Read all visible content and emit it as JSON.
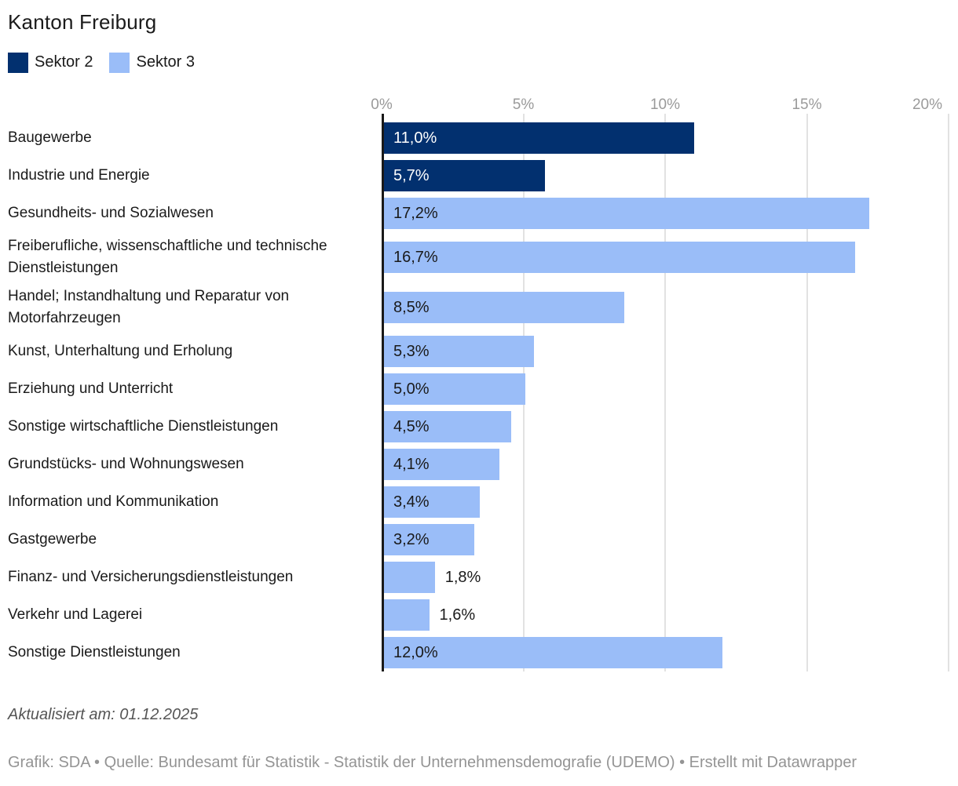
{
  "title": "Kanton Freiburg",
  "legend": {
    "items": [
      {
        "label": "Sektor 2",
        "color": "#02306f"
      },
      {
        "label": "Sektor 3",
        "color": "#9abdf8"
      }
    ]
  },
  "colors": {
    "sektor2": "#02306f",
    "sektor3": "#9abdf8",
    "axis_line": "#191919",
    "gridline": "#e2e2e2",
    "tick_text": "#9a9a9a"
  },
  "chart_data": {
    "type": "bar",
    "orientation": "horizontal",
    "title": "Kanton Freiburg",
    "xlabel": "",
    "ylabel": "",
    "xlim": [
      0,
      20
    ],
    "x_ticks": [
      "0%",
      "5%",
      "10%",
      "15%",
      "20%"
    ],
    "grid": true,
    "legend_position": "top",
    "series_names": [
      "Sektor 2",
      "Sektor 3"
    ],
    "categories": [
      "Baugewerbe",
      "Industrie und Energie",
      "Gesundheits- und Sozialwesen",
      "Freiberufliche, wissenschaftliche und technische Dienstleistungen",
      "Handel; Instandhaltung und Reparatur von Motorfahrzeugen",
      "Kunst, Unterhaltung und Erholung",
      "Erziehung und Unterricht",
      "Sonstige wirtschaftliche Dienstleistungen",
      "Grundstücks- und Wohnungswesen",
      "Information und Kommunikation",
      "Gastgewerbe",
      "Finanz- und Versicherungsdienstleistungen",
      "Verkehr und Lagerei",
      "Sonstige Dienstleistungen"
    ],
    "rows": [
      {
        "category": "Baugewerbe",
        "series_index": 0,
        "series": "Sektor 2",
        "value": 11.0,
        "label": "11,0%",
        "label_placement": "inside"
      },
      {
        "category": "Industrie und Energie",
        "series_index": 0,
        "series": "Sektor 2",
        "value": 5.7,
        "label": "5,7%",
        "label_placement": "inside"
      },
      {
        "category": "Gesundheits- und Sozialwesen",
        "series_index": 1,
        "series": "Sektor 3",
        "value": 17.2,
        "label": "17,2%",
        "label_placement": "inside"
      },
      {
        "category": "Freiberufliche, wissenschaftliche und technische Dienstleistungen",
        "series_index": 1,
        "series": "Sektor 3",
        "value": 16.7,
        "label": "16,7%",
        "label_placement": "inside"
      },
      {
        "category": "Handel; Instandhaltung und Reparatur von Motorfahrzeugen",
        "series_index": 1,
        "series": "Sektor 3",
        "value": 8.5,
        "label": "8,5%",
        "label_placement": "inside"
      },
      {
        "category": "Kunst, Unterhaltung und Erholung",
        "series_index": 1,
        "series": "Sektor 3",
        "value": 5.3,
        "label": "5,3%",
        "label_placement": "inside"
      },
      {
        "category": "Erziehung und Unterricht",
        "series_index": 1,
        "series": "Sektor 3",
        "value": 5.0,
        "label": "5,0%",
        "label_placement": "inside"
      },
      {
        "category": "Sonstige wirtschaftliche Dienstleistungen",
        "series_index": 1,
        "series": "Sektor 3",
        "value": 4.5,
        "label": "4,5%",
        "label_placement": "inside"
      },
      {
        "category": "Grundstücks- und Wohnungswesen",
        "series_index": 1,
        "series": "Sektor 3",
        "value": 4.1,
        "label": "4,1%",
        "label_placement": "inside"
      },
      {
        "category": "Information und Kommunikation",
        "series_index": 1,
        "series": "Sektor 3",
        "value": 3.4,
        "label": "3,4%",
        "label_placement": "inside"
      },
      {
        "category": "Gastgewerbe",
        "series_index": 1,
        "series": "Sektor 3",
        "value": 3.2,
        "label": "3,2%",
        "label_placement": "inside"
      },
      {
        "category": "Finanz- und Versicherungsdienstleistungen",
        "series_index": 1,
        "series": "Sektor 3",
        "value": 1.8,
        "label": "1,8%",
        "label_placement": "outside"
      },
      {
        "category": "Verkehr und Lagerei",
        "series_index": 1,
        "series": "Sektor 3",
        "value": 1.6,
        "label": "1,6%",
        "label_placement": "outside"
      },
      {
        "category": "Sonstige Dienstleistungen",
        "series_index": 1,
        "series": "Sektor 3",
        "value": 12.0,
        "label": "12,0%",
        "label_placement": "inside"
      }
    ]
  },
  "note": "Aktualisiert am: 01.12.2025",
  "footer": "Grafik: SDA • Quelle: Bundesamt für Statistik - Statistik der Unternehmensdemografie (UDEMO) • Erstellt mit Datawrapper"
}
